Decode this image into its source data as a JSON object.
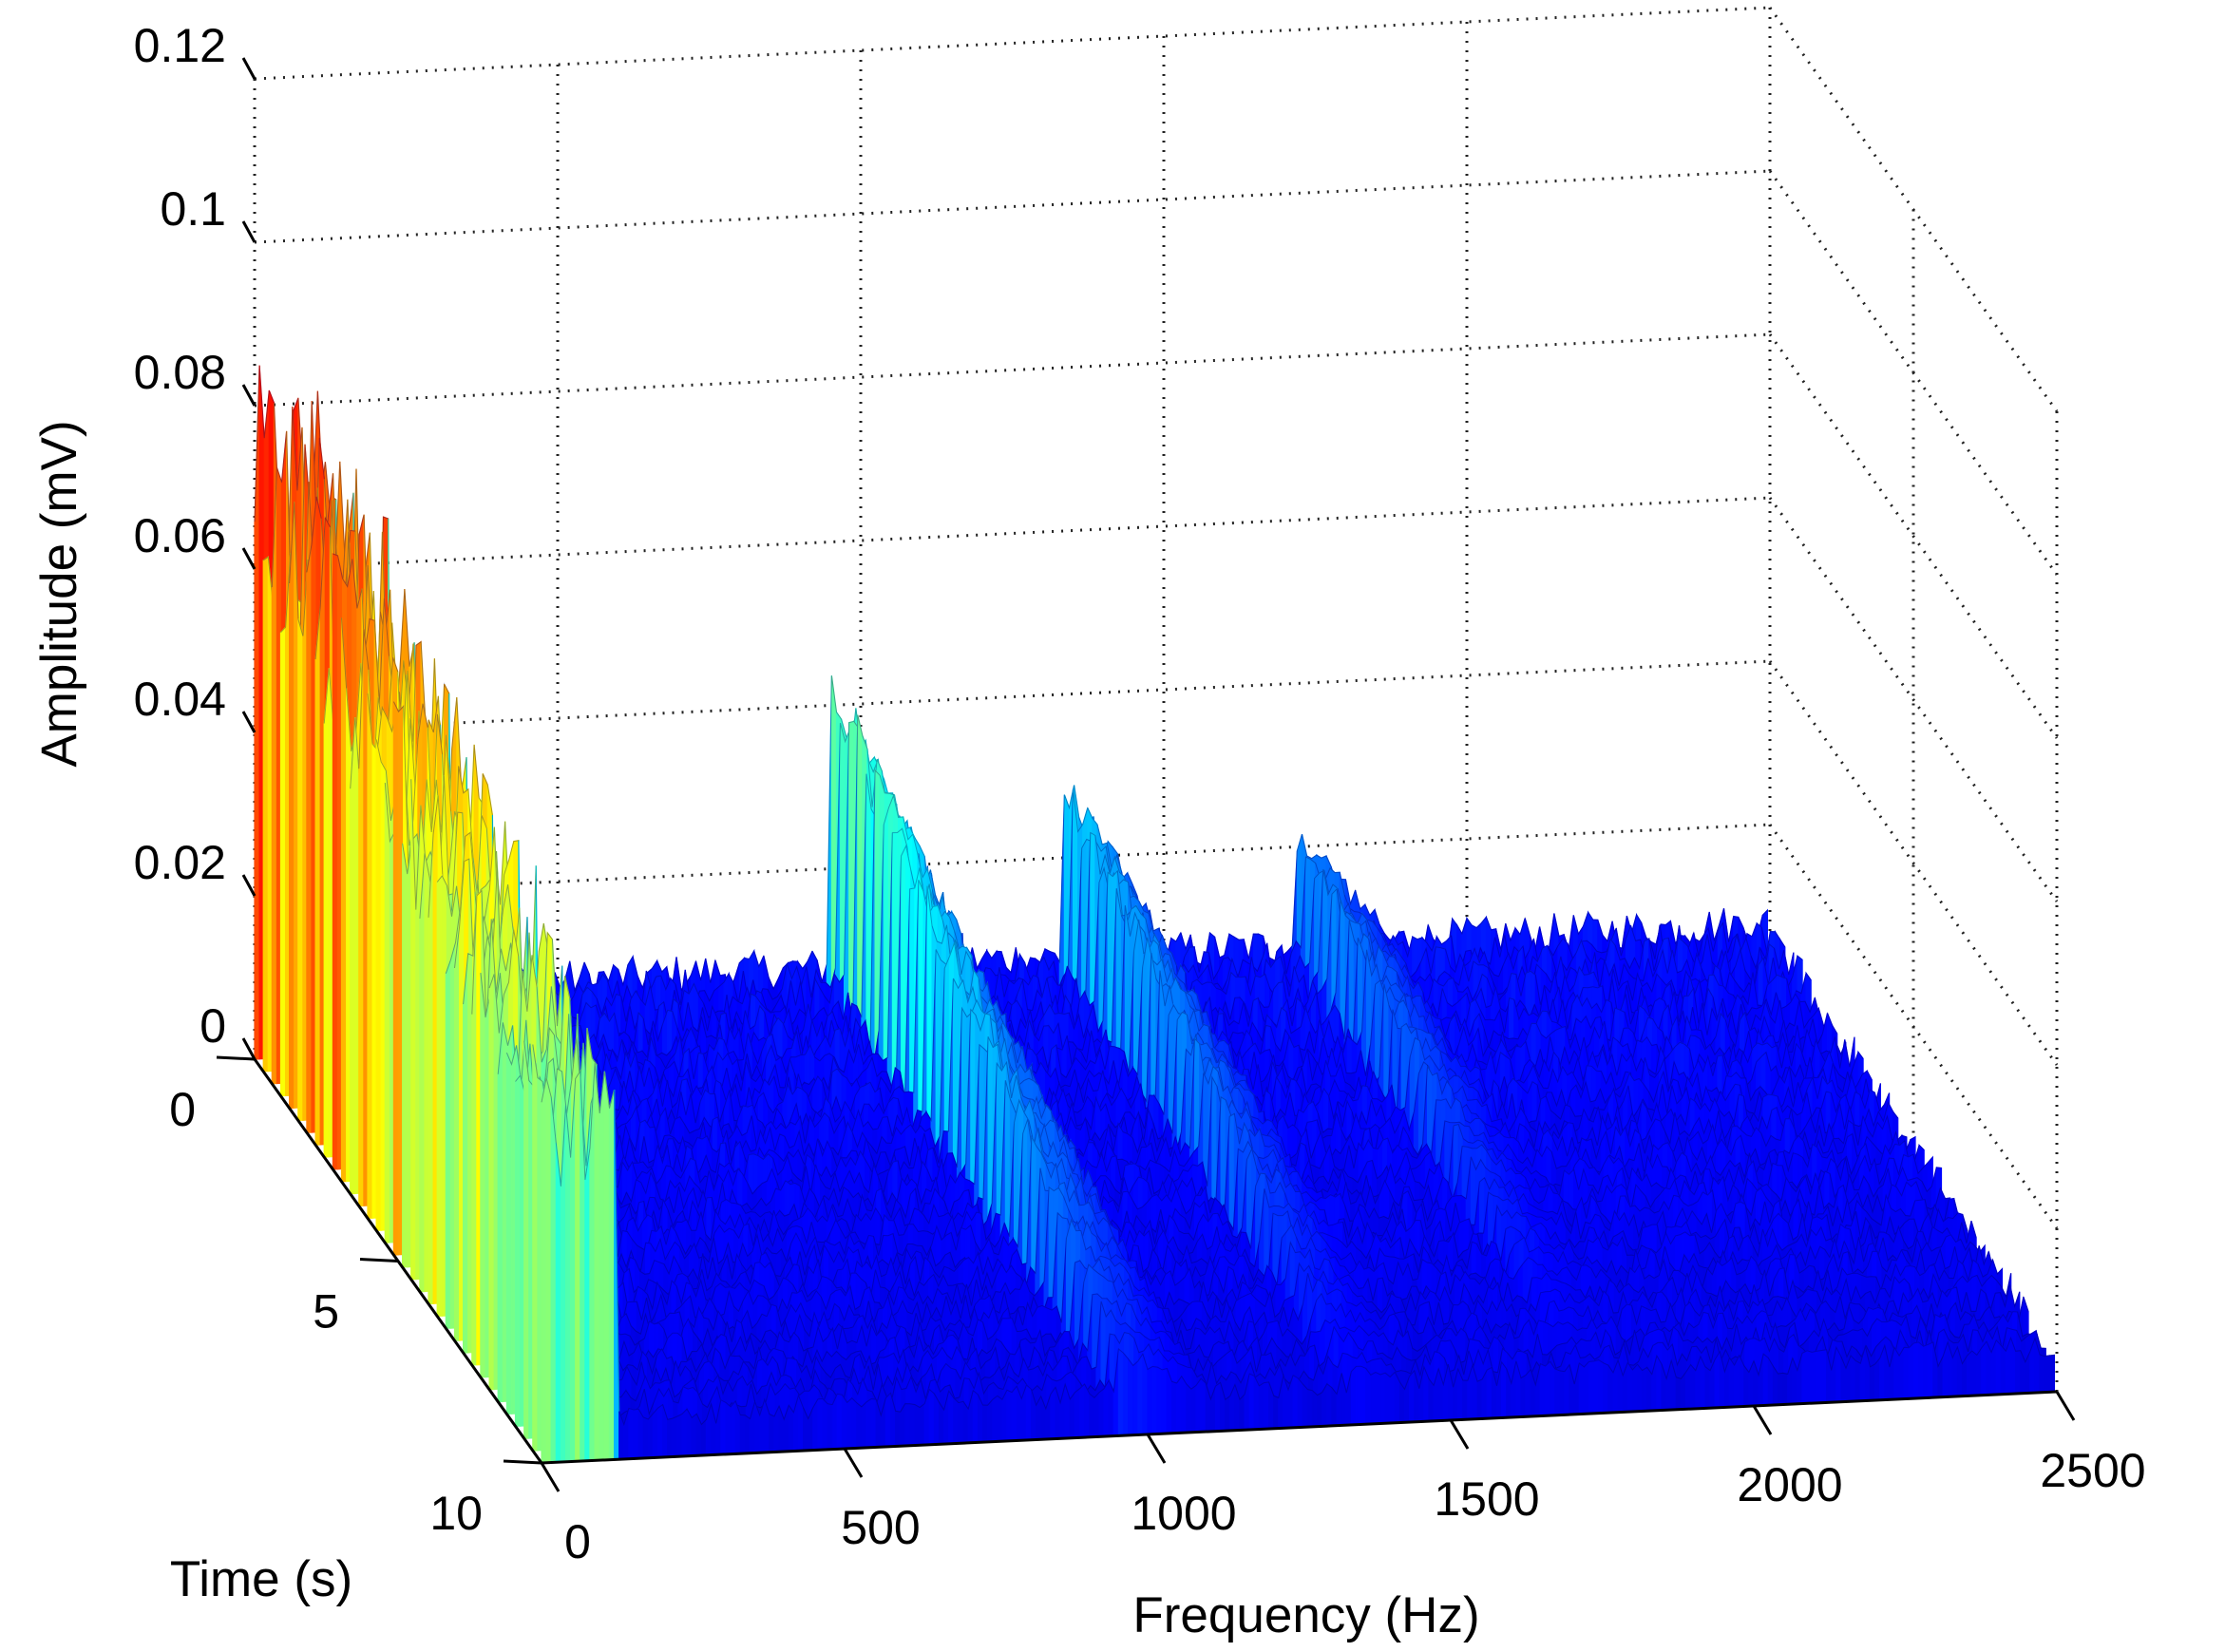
{
  "chart_data": {
    "type": "waterfall",
    "view": "3d",
    "xlabel": "Frequency (Hz)",
    "ylabel": "Time (s)",
    "zlabel": "Amplitude (mV)",
    "xlim": [
      0,
      2500
    ],
    "ylim": [
      0,
      10
    ],
    "zlim": [
      0,
      0.12
    ],
    "xticks": [
      "0",
      "500",
      "1000",
      "1500",
      "2000",
      "2500"
    ],
    "yticks": [
      "0",
      "5",
      "10"
    ],
    "zticks": [
      "0",
      "0.02",
      "0.04",
      "0.06",
      "0.08",
      "0.1",
      "0.12"
    ],
    "grid": true,
    "colormap": "jet",
    "peaks": [
      {
        "frequency_range": [
          0,
          120
        ],
        "max_amplitude": 0.085
      },
      {
        "frequency_range": [
          950,
          1100
        ],
        "max_amplitude": 0.047
      },
      {
        "frequency_range": [
          1330,
          1470
        ],
        "max_amplitude": 0.032
      },
      {
        "frequency_range": [
          1720,
          1860
        ],
        "max_amplitude": 0.024
      }
    ],
    "baseline_amplitude": 0.008
  }
}
